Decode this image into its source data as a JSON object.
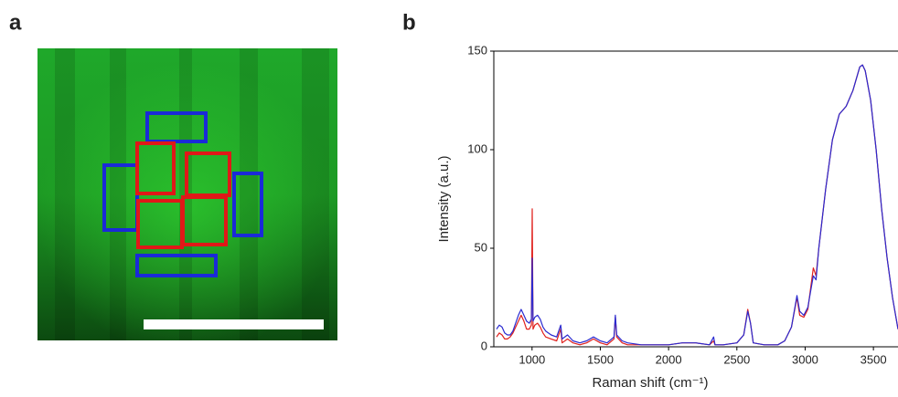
{
  "figure": {
    "panel_a": "a",
    "panel_b": "b"
  },
  "chart_data": {
    "type": "line",
    "xlabel": "Raman shift (cm⁻¹)",
    "ylabel": "Intensity (a.u.)",
    "x": [
      740,
      760,
      780,
      800,
      820,
      840,
      860,
      880,
      900,
      920,
      940,
      960,
      980,
      995,
      1001,
      1007,
      1020,
      1040,
      1060,
      1080,
      1100,
      1140,
      1180,
      1210,
      1220,
      1260,
      1300,
      1350,
      1400,
      1450,
      1500,
      1550,
      1600,
      1610,
      1620,
      1660,
      1700,
      1800,
      1900,
      2000,
      2100,
      2200,
      2300,
      2330,
      2340,
      2400,
      2500,
      2550,
      2580,
      2600,
      2620,
      2700,
      2800,
      2850,
      2900,
      2940,
      2960,
      2990,
      3020,
      3060,
      3080,
      3100,
      3150,
      3200,
      3250,
      3300,
      3350,
      3400,
      3420,
      3440,
      3480,
      3520,
      3560,
      3600,
      3640,
      3680
    ],
    "series": [
      {
        "color": "#e0201c",
        "values": [
          5,
          7,
          6,
          4,
          4,
          5,
          7,
          10,
          13,
          16,
          13,
          9,
          9,
          11,
          70,
          9,
          11,
          12,
          10,
          7,
          5,
          4,
          3,
          9,
          2,
          4,
          2,
          1,
          2,
          4,
          2,
          1,
          4,
          15,
          5,
          2,
          1,
          1,
          1,
          1,
          2,
          2,
          1,
          3,
          1,
          1,
          2,
          6,
          19,
          12,
          2,
          1,
          1,
          3,
          10,
          25,
          16,
          15,
          19,
          40,
          36,
          50,
          80,
          105,
          118,
          122,
          130,
          142,
          143,
          140,
          125,
          100,
          70,
          45,
          25,
          9
        ]
      },
      {
        "color": "#2a2ad0",
        "values": [
          9,
          11,
          10,
          7,
          6,
          6,
          8,
          12,
          16,
          19,
          16,
          13,
          12,
          14,
          45,
          13,
          15,
          16,
          14,
          10,
          8,
          6,
          5,
          11,
          4,
          6,
          3,
          2,
          3,
          5,
          3,
          2,
          5,
          16,
          6,
          3,
          2,
          1,
          1,
          1,
          2,
          2,
          1,
          5,
          1,
          1,
          2,
          6,
          18,
          12,
          2,
          1,
          1,
          3,
          10,
          26,
          18,
          16,
          20,
          36,
          34,
          50,
          80,
          105,
          118,
          122,
          130,
          142,
          143,
          140,
          125,
          100,
          70,
          45,
          25,
          9
        ]
      }
    ],
    "xlim": [
      720,
      3680
    ],
    "ylim": [
      0,
      150
    ],
    "xticks": [
      1000,
      1500,
      2000,
      2500,
      3000,
      3500
    ],
    "yticks": [
      0,
      50,
      100,
      150
    ]
  }
}
